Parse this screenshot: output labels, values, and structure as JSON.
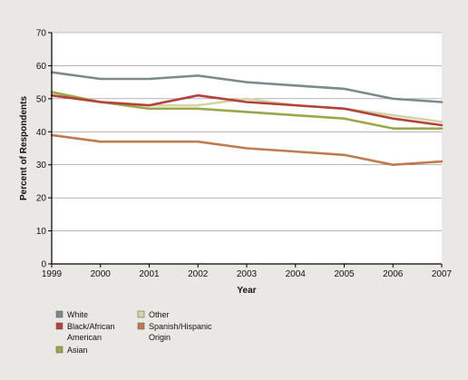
{
  "chart_data": {
    "type": "line",
    "xlabel": "Year",
    "ylabel": "Percent of Respondents",
    "ylim": [
      0,
      70
    ],
    "xlim": [
      1999,
      2007
    ],
    "yticks": [
      "0",
      "10",
      "20",
      "30",
      "40",
      "50",
      "60",
      "70"
    ],
    "xticks": [
      "1999",
      "2000",
      "2001",
      "2002",
      "2003",
      "2004",
      "2005",
      "2006",
      "2007"
    ],
    "x": [
      1999,
      2000,
      2001,
      2002,
      2003,
      2004,
      2005,
      2006,
      2007
    ],
    "grid": "horizontal",
    "legend_position": "bottom-left",
    "series": [
      {
        "name": "White",
        "color": "#7a8a8d",
        "values": [
          58,
          56,
          56,
          57,
          55,
          54,
          53,
          50,
          49
        ]
      },
      {
        "name": "Black/African American",
        "color": "#b5413a",
        "values": [
          51,
          49,
          48,
          51,
          49,
          48,
          47,
          44,
          42
        ]
      },
      {
        "name": "Asian",
        "color": "#9ea64a",
        "values": [
          52,
          49,
          47,
          47,
          46,
          45,
          44,
          41,
          41
        ]
      },
      {
        "name": "Other",
        "color": "#d3d3a6",
        "values": [
          52,
          49,
          48,
          48,
          50,
          48,
          47,
          45,
          43
        ]
      },
      {
        "name": "Spanish/Hispanic Origin",
        "color": "#c07c4f",
        "values": [
          39,
          37,
          37,
          37,
          35,
          34,
          33,
          30,
          31
        ]
      }
    ]
  }
}
